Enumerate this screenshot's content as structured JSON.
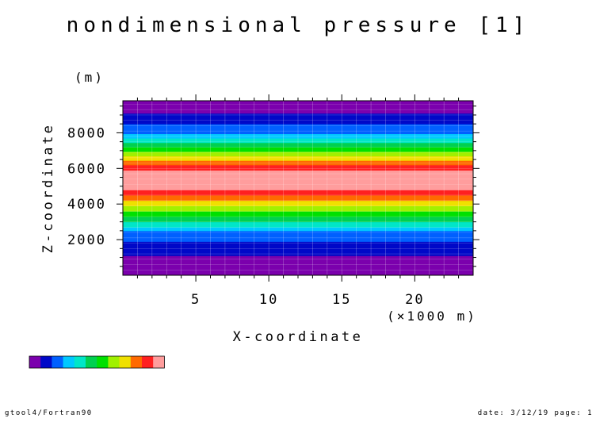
{
  "chart_data": {
    "type": "heatmap",
    "title": "nondimensional pressure [1]",
    "xlabel": "X-coordinate",
    "ylabel": "Z-coordinate",
    "x_unit_label": "(×1000 m)",
    "y_unit_label": "(m)",
    "xlim": [
      0,
      24
    ],
    "ylim": [
      0,
      9800
    ],
    "x_ticks": [
      5,
      10,
      15,
      20
    ],
    "y_ticks": [
      2000,
      4000,
      6000,
      8000
    ],
    "grid": true,
    "colorbar": {
      "placement": "bottom-left",
      "colors": [
        "#7b00ad",
        "#0008c8",
        "#0060ff",
        "#00c8ff",
        "#00e6c8",
        "#00d050",
        "#00e000",
        "#a0f000",
        "#f0e000",
        "#ff6a00",
        "#ff2020",
        "#ff9d9d"
      ]
    },
    "bands": [
      {
        "z0": 0,
        "z1": 700,
        "level": 0
      },
      {
        "z0": 700,
        "z1": 1100,
        "level": 0
      },
      {
        "z0": 1100,
        "z1": 1500,
        "level": 1
      },
      {
        "z0": 1500,
        "z1": 1900,
        "level": 1
      },
      {
        "z0": 1900,
        "z1": 2200,
        "level": 2
      },
      {
        "z0": 2200,
        "z1": 2500,
        "level": 2
      },
      {
        "z0": 2500,
        "z1": 2700,
        "level": 3
      },
      {
        "z0": 2700,
        "z1": 3000,
        "level": 4
      },
      {
        "z0": 3000,
        "z1": 3300,
        "level": 5
      },
      {
        "z0": 3300,
        "z1": 3600,
        "level": 6
      },
      {
        "z0": 3600,
        "z1": 3900,
        "level": 7
      },
      {
        "z0": 3900,
        "z1": 4200,
        "level": 8
      },
      {
        "z0": 4200,
        "z1": 4500,
        "level": 9
      },
      {
        "z0": 4500,
        "z1": 4800,
        "level": 10
      },
      {
        "z0": 4800,
        "z1": 5900,
        "level": 11
      },
      {
        "z0": 5900,
        "z1": 6200,
        "level": 10
      },
      {
        "z0": 6200,
        "z1": 6450,
        "level": 9
      },
      {
        "z0": 6450,
        "z1": 6700,
        "level": 8
      },
      {
        "z0": 6700,
        "z1": 6950,
        "level": 7
      },
      {
        "z0": 6950,
        "z1": 7200,
        "level": 6
      },
      {
        "z0": 7200,
        "z1": 7450,
        "level": 5
      },
      {
        "z0": 7450,
        "z1": 7700,
        "level": 4
      },
      {
        "z0": 7700,
        "z1": 7950,
        "level": 3
      },
      {
        "z0": 7950,
        "z1": 8200,
        "level": 2
      },
      {
        "z0": 8200,
        "z1": 8500,
        "level": 2
      },
      {
        "z0": 8500,
        "z1": 8800,
        "level": 1
      },
      {
        "z0": 8800,
        "z1": 9100,
        "level": 1
      },
      {
        "z0": 9100,
        "z1": 9800,
        "level": 0
      }
    ]
  },
  "footer": {
    "left": "gtool4/Fortran90",
    "right": "date: 3/12/19 page: 1"
  }
}
